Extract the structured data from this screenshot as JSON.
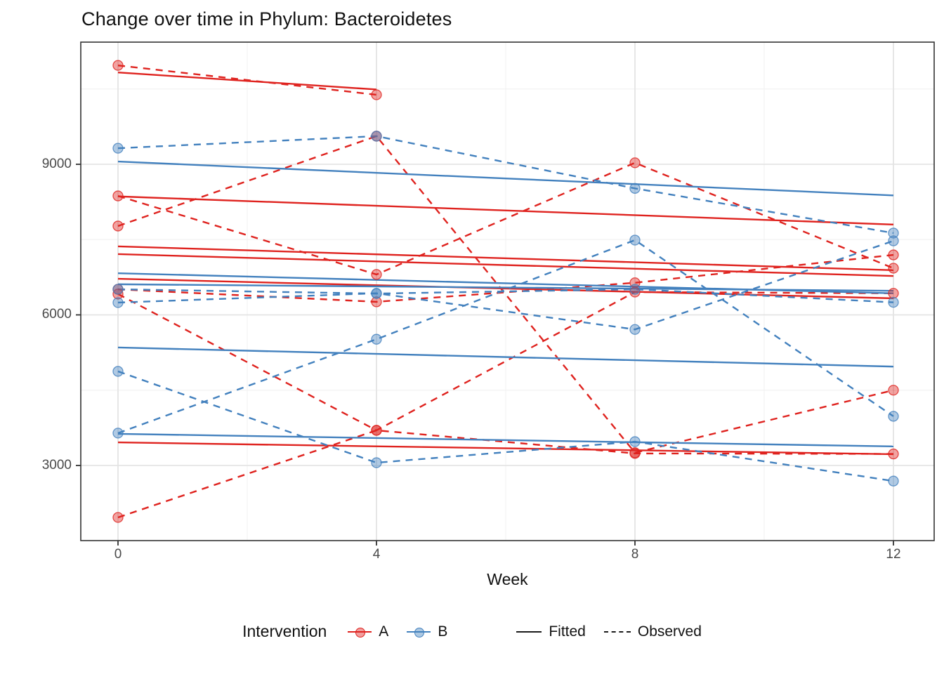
{
  "chart_data": {
    "type": "line",
    "title": "Change over time in Phylum: Bacteroidetes",
    "xlabel": "Week",
    "x_ticks": [
      "0",
      "4",
      "8",
      "12"
    ],
    "x_tick_values": [
      0,
      4,
      8,
      12
    ],
    "x_minor_values": [
      2,
      6,
      10
    ],
    "y_ticks": [
      "3000",
      "6000",
      "9000"
    ],
    "y_tick_values": [
      3000,
      6000,
      9000
    ],
    "y_minor_values": [
      4500,
      7500,
      10500
    ],
    "ylim": [
      1500,
      11435
    ],
    "xlim": [
      -0.58,
      12.63
    ],
    "grid": true,
    "legend_position": "bottom",
    "legend": {
      "title": "Intervention",
      "items": [
        {
          "label": "A",
          "color": "#DF231F"
        },
        {
          "label": "B",
          "color": "#4381BE"
        }
      ],
      "linetype_items": [
        {
          "label": "Fitted",
          "style": "solid"
        },
        {
          "label": "Observed",
          "style": "dashed"
        }
      ]
    },
    "colors": {
      "A": "#DF231F",
      "B": "#4381BE"
    },
    "weeks": [
      0,
      4,
      8,
      12
    ],
    "subjects": [
      {
        "id": "A1",
        "intervention": "A",
        "observed": [
          [
            0,
            10970
          ],
          [
            4,
            10385
          ]
        ],
        "fitted": [
          [
            0,
            10830
          ],
          [
            4,
            10490
          ]
        ]
      },
      {
        "id": "A2",
        "intervention": "A",
        "observed": [
          [
            0,
            8370
          ],
          [
            4,
            6805
          ],
          [
            8,
            9030
          ],
          [
            12,
            6930
          ]
        ],
        "fitted": [
          [
            0,
            8360
          ],
          [
            12,
            7800
          ]
        ]
      },
      {
        "id": "A3",
        "intervention": "A",
        "observed": [
          [
            0,
            7770
          ],
          [
            4,
            9560
          ],
          [
            8,
            3255
          ],
          [
            12,
            4500
          ]
        ],
        "fitted": [
          [
            0,
            6720
          ],
          [
            12,
            6330
          ]
        ]
      },
      {
        "id": "A4",
        "intervention": "A",
        "observed": [
          [
            0,
            6510
          ],
          [
            4,
            6260
          ],
          [
            8,
            6640
          ],
          [
            12,
            7195
          ]
        ],
        "fitted": [
          [
            0,
            7365
          ],
          [
            12,
            6890
          ]
        ]
      },
      {
        "id": "A5",
        "intervention": "A",
        "observed": [
          [
            0,
            6415
          ],
          [
            4,
            3700
          ],
          [
            8,
            6455
          ],
          [
            12,
            6430
          ]
        ],
        "fitted": [
          [
            0,
            7210
          ],
          [
            12,
            6775
          ]
        ]
      },
      {
        "id": "A6",
        "intervention": "A",
        "observed": [
          [
            0,
            1965
          ],
          [
            4,
            3700
          ],
          [
            8,
            3240
          ],
          [
            12,
            3230
          ]
        ],
        "fitted": [
          [
            0,
            3460
          ],
          [
            12,
            3225
          ]
        ]
      },
      {
        "id": "B1",
        "intervention": "B",
        "observed": [
          [
            0,
            9320
          ],
          [
            4,
            9560
          ],
          [
            8,
            8520
          ],
          [
            12,
            7630
          ]
        ],
        "fitted": [
          [
            0,
            9055
          ],
          [
            12,
            8380
          ]
        ]
      },
      {
        "id": "B2",
        "intervention": "B",
        "observed": [
          [
            0,
            6245
          ],
          [
            4,
            6430
          ],
          [
            8,
            5710
          ],
          [
            12,
            7475
          ]
        ],
        "fitted": [
          [
            0,
            6830
          ],
          [
            12,
            6430
          ]
        ]
      },
      {
        "id": "B3",
        "intervention": "B",
        "observed": [
          [
            0,
            3645
          ],
          [
            4,
            5515
          ],
          [
            8,
            7490
          ],
          [
            12,
            3980
          ]
        ],
        "fitted": [
          [
            0,
            5350
          ],
          [
            12,
            4970
          ]
        ]
      },
      {
        "id": "B4",
        "intervention": "B",
        "observed": [
          [
            0,
            4875
          ],
          [
            4,
            3055
          ],
          [
            8,
            3475
          ],
          [
            12,
            2690
          ]
        ],
        "fitted": [
          [
            0,
            3630
          ],
          [
            12,
            3380
          ]
        ]
      },
      {
        "id": "B5",
        "intervention": "B",
        "observed": [
          [
            0,
            6510
          ],
          [
            4,
            6425
          ],
          [
            8,
            6510
          ],
          [
            12,
            6250
          ]
        ],
        "fitted": [
          [
            0,
            6610
          ],
          [
            12,
            6480
          ]
        ]
      }
    ]
  }
}
